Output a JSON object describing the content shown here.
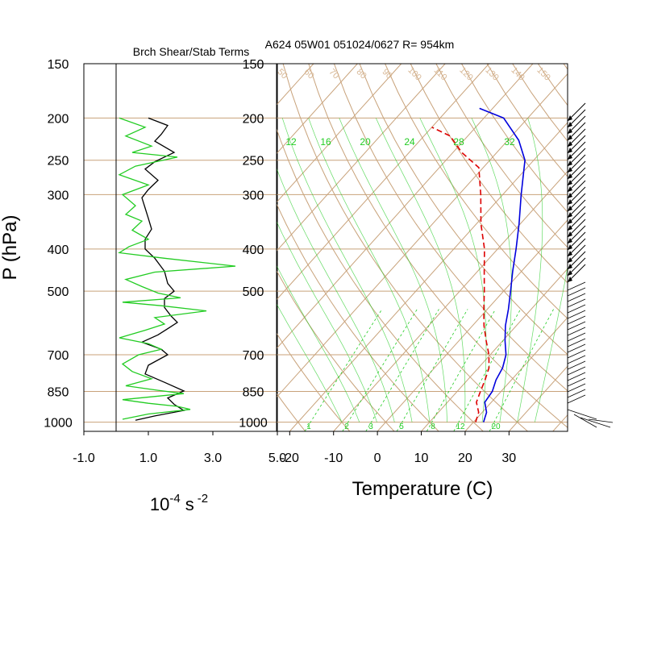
{
  "header": {
    "left_title": "Brch Shear/Stab Terms",
    "right_title": "A624 05W01 051024/0627 R= 954km"
  },
  "chart_data": [
    {
      "type": "line",
      "panel": "shear-stability",
      "ylabel": "P (hPa)",
      "xlabel_base": "10",
      "xlabel_exp": "-4",
      "xlabel_unit": "s",
      "xlabel_unit_exp": "-2",
      "xlim": [
        -1.0,
        5.0
      ],
      "xticks": [
        "-1.0",
        "1.0",
        "3.0",
        "5.0"
      ],
      "yticks": [
        "150",
        "200",
        "250",
        "300",
        "400",
        "500",
        "700",
        "850",
        "1000"
      ],
      "zero_line": 0,
      "series": [
        {
          "key": "black",
          "color": "#000000",
          "points": [
            [
              1.0,
              200
            ],
            [
              1.6,
              208
            ],
            [
              1.4,
              218
            ],
            [
              1.2,
              226
            ],
            [
              1.8,
              240
            ],
            [
              1.2,
              252
            ],
            [
              0.9,
              262
            ],
            [
              1.3,
              278
            ],
            [
              1.0,
              292
            ],
            [
              0.8,
              305
            ],
            [
              0.9,
              322
            ],
            [
              1.0,
              340
            ],
            [
              1.1,
              360
            ],
            [
              0.9,
              380
            ],
            [
              0.9,
              400
            ],
            [
              1.2,
              420
            ],
            [
              1.5,
              450
            ],
            [
              1.6,
              480
            ],
            [
              1.8,
              500
            ],
            [
              1.5,
              520
            ],
            [
              1.5,
              545
            ],
            [
              1.7,
              570
            ],
            [
              1.9,
              590
            ],
            [
              1.6,
              610
            ],
            [
              1.3,
              630
            ],
            [
              0.8,
              655
            ],
            [
              1.4,
              680
            ],
            [
              1.6,
              700
            ],
            [
              1.0,
              740
            ],
            [
              0.9,
              775
            ],
            [
              1.5,
              810
            ],
            [
              2.1,
              848
            ],
            [
              1.6,
              880
            ],
            [
              1.8,
              910
            ],
            [
              2.1,
              940
            ],
            [
              1.2,
              968
            ],
            [
              0.6,
              990
            ]
          ]
        },
        {
          "key": "green",
          "color": "#22cc22",
          "points": [
            [
              0.1,
              200
            ],
            [
              0.9,
              210
            ],
            [
              0.3,
              220
            ],
            [
              1.1,
              232
            ],
            [
              0.5,
              240
            ],
            [
              1.9,
              246
            ],
            [
              0.6,
              258
            ],
            [
              0.1,
              270
            ],
            [
              1.0,
              285
            ],
            [
              0.2,
              300
            ],
            [
              0.6,
              318
            ],
            [
              0.3,
              333
            ],
            [
              0.8,
              345
            ],
            [
              0.5,
              362
            ],
            [
              1.0,
              380
            ],
            [
              0.4,
              395
            ],
            [
              0.1,
              408
            ],
            [
              1.5,
              420
            ],
            [
              3.7,
              438
            ],
            [
              1.2,
              452
            ],
            [
              0.3,
              470
            ],
            [
              0.8,
              488
            ],
            [
              1.3,
              505
            ],
            [
              2.0,
              518
            ],
            [
              0.2,
              530
            ],
            [
              1.4,
              540
            ],
            [
              2.8,
              555
            ],
            [
              1.2,
              575
            ],
            [
              1.5,
              595
            ],
            [
              0.9,
              615
            ],
            [
              0.1,
              640
            ],
            [
              1.0,
              660
            ],
            [
              1.4,
              680
            ],
            [
              0.7,
              700
            ],
            [
              0.2,
              735
            ],
            [
              0.5,
              765
            ],
            [
              1.1,
              795
            ],
            [
              0.3,
              825
            ],
            [
              1.3,
              845
            ],
            [
              2.1,
              860
            ],
            [
              0.2,
              888
            ],
            [
              1.0,
              905
            ],
            [
              1.9,
              920
            ],
            [
              2.3,
              935
            ],
            [
              1.0,
              958
            ],
            [
              0.2,
              985
            ]
          ]
        }
      ]
    },
    {
      "type": "line",
      "panel": "skew-t",
      "xlabel": "Temperature (C)",
      "xlim": [
        -23,
        42
      ],
      "xticks": [
        "-20",
        "-10",
        "0",
        "10",
        "20",
        "30"
      ],
      "yticks": [
        "150",
        "200",
        "250",
        "300",
        "400",
        "500",
        "700",
        "850",
        "1000"
      ],
      "dry_adiabat_labels": [
        "50",
        "60",
        "70",
        "80",
        "90",
        "100",
        "110",
        "120",
        "130",
        "140",
        "150"
      ],
      "moist_adiabat_labels": [
        "12",
        "16",
        "20",
        "24",
        "28",
        "32"
      ],
      "mixing_ratio_labels": [
        "1",
        "2",
        "3",
        "5",
        "8",
        "12",
        "20"
      ],
      "temperature_profile": [
        [
          22.3,
          1000
        ],
        [
          21.0,
          950
        ],
        [
          18.5,
          900
        ],
        [
          18.0,
          850
        ],
        [
          16.5,
          800
        ],
        [
          15.5,
          750
        ],
        [
          13.6,
          700
        ],
        [
          10.5,
          650
        ],
        [
          7.5,
          600
        ],
        [
          4.8,
          550
        ],
        [
          1.6,
          500
        ],
        [
          -2.0,
          450
        ],
        [
          -5.8,
          400
        ],
        [
          -10.3,
          350
        ],
        [
          -15.8,
          300
        ],
        [
          -22.0,
          250
        ],
        [
          -27.5,
          225
        ],
        [
          -35.5,
          200
        ],
        [
          -43.0,
          190
        ]
      ],
      "dewpoint_profile": [
        [
          20.5,
          1000
        ],
        [
          19.2,
          950
        ],
        [
          16.6,
          900
        ],
        [
          15.3,
          850
        ],
        [
          14.0,
          800
        ],
        [
          12.4,
          750
        ],
        [
          9.7,
          700
        ],
        [
          6.2,
          650
        ],
        [
          2.6,
          600
        ],
        [
          -0.8,
          550
        ],
        [
          -4.4,
          500
        ],
        [
          -8.5,
          450
        ],
        [
          -13.0,
          400
        ],
        [
          -19.0,
          350
        ],
        [
          -25.0,
          300
        ],
        [
          -31.0,
          260
        ],
        [
          -38.0,
          240
        ],
        [
          -44.0,
          220
        ],
        [
          -50.0,
          210
        ]
      ],
      "temperature_color": "#0000dd",
      "dewpoint_color": "#dd0000",
      "isobar_color": "#c8a27a",
      "moist_color": "#22cc22"
    }
  ]
}
